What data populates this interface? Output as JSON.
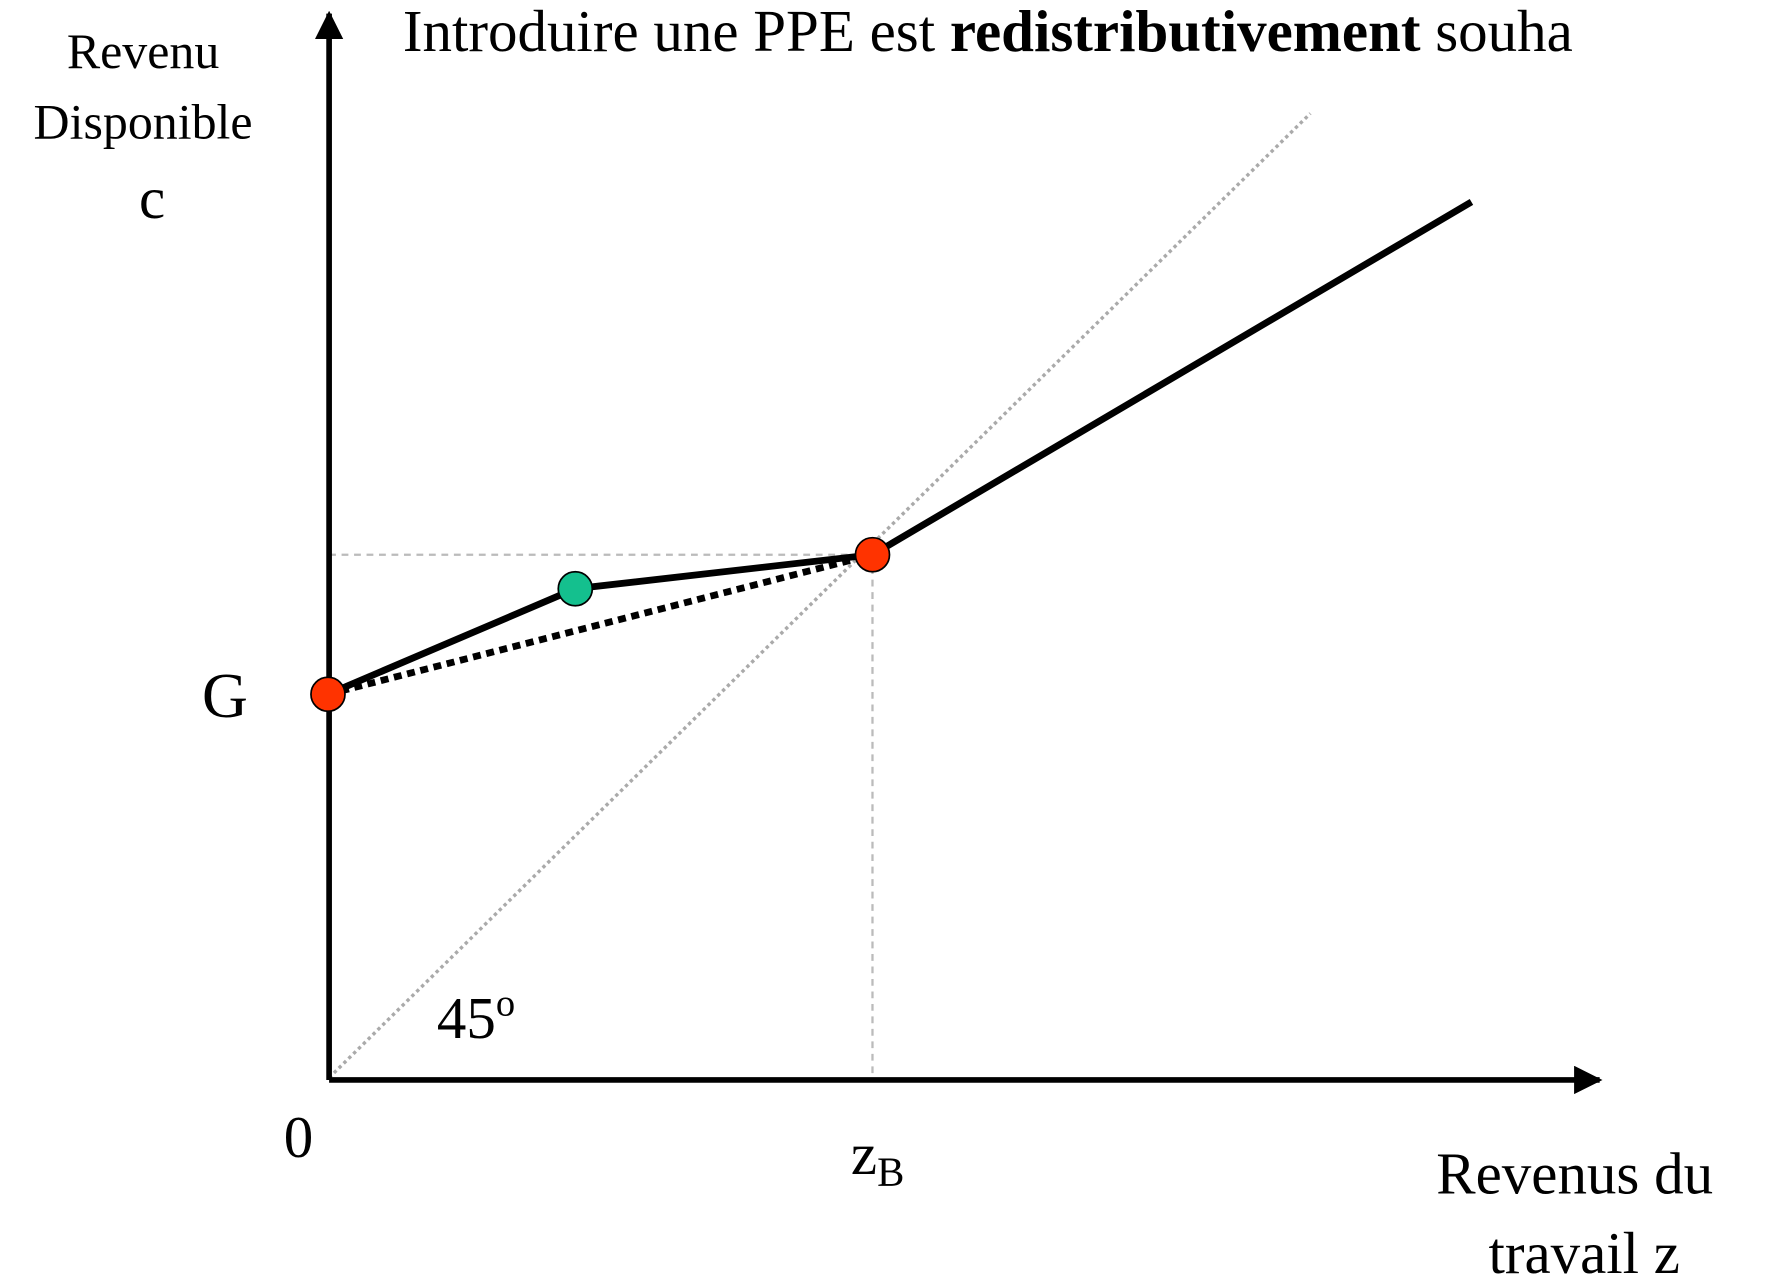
{
  "title": {
    "prefix": "Introduire une PPE est",
    "bold": "redistributivement",
    "suffix": "souha"
  },
  "y_axis_label": [
    "Revenu",
    "Disponible",
    "c"
  ],
  "x_axis_label": [
    "Revenus du",
    "travail z"
  ],
  "labels": {
    "G": "G",
    "origin": "0",
    "zB": {
      "main": "z",
      "sub": "B"
    },
    "angle": {
      "main": "45",
      "sup": "o"
    }
  }
}
